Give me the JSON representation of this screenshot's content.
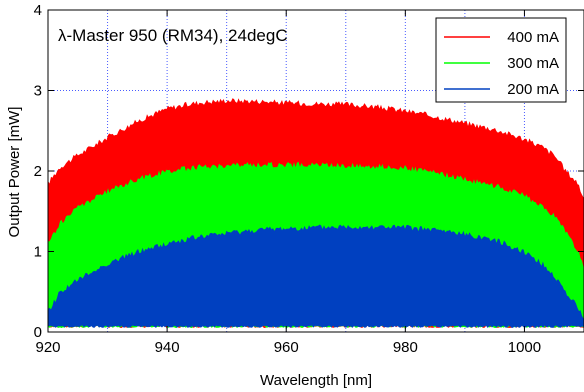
{
  "chart_data": {
    "type": "area",
    "title": "λ-Master 950 (RM34), 24degC",
    "xlabel": "Wavelength [nm]",
    "ylabel": "Output Power [mW]",
    "xlim": [
      920,
      1010
    ],
    "ylim": [
      0,
      4
    ],
    "x_ticks": [
      920,
      940,
      960,
      980,
      1000
    ],
    "x_tick_labels": [
      "920",
      "940",
      "960",
      "980",
      "1000"
    ],
    "y_ticks": [
      0,
      1,
      2,
      3,
      4
    ],
    "y_tick_labels": [
      "0",
      "1",
      "2",
      "3",
      "4"
    ],
    "grid": "dotted, blue, every 10 nm and every 1 mW",
    "legend_position": "top-right",
    "band_floor_mW": 0.05,
    "series": [
      {
        "name": "400 mA",
        "color": "#ff0000",
        "x": [
          920,
          922,
          925,
          930,
          935,
          940,
          945,
          950,
          955,
          960,
          965,
          970,
          975,
          980,
          985,
          990,
          995,
          1000,
          1003,
          1005,
          1007,
          1009,
          1010
        ],
        "y": [
          1.85,
          2.05,
          2.2,
          2.42,
          2.62,
          2.78,
          2.85,
          2.88,
          2.87,
          2.85,
          2.84,
          2.83,
          2.8,
          2.75,
          2.68,
          2.6,
          2.52,
          2.4,
          2.3,
          2.2,
          2.0,
          1.85,
          1.65
        ]
      },
      {
        "name": "300 mA",
        "color": "#00ff00",
        "x": [
          920,
          922,
          925,
          930,
          935,
          940,
          945,
          950,
          955,
          960,
          965,
          970,
          975,
          980,
          985,
          990,
          995,
          1000,
          1003,
          1005,
          1007,
          1009,
          1010
        ],
        "y": [
          1.1,
          1.35,
          1.55,
          1.75,
          1.9,
          2.0,
          2.05,
          2.07,
          2.08,
          2.08,
          2.08,
          2.07,
          2.06,
          2.04,
          1.98,
          1.9,
          1.82,
          1.7,
          1.55,
          1.45,
          1.25,
          1.0,
          0.8
        ]
      },
      {
        "name": "200 mA",
        "color": "#0040c0",
        "x": [
          920,
          922,
          925,
          930,
          935,
          940,
          945,
          950,
          955,
          960,
          965,
          970,
          975,
          980,
          985,
          990,
          995,
          1000,
          1003,
          1005,
          1007,
          1009,
          1010
        ],
        "y": [
          0.25,
          0.5,
          0.65,
          0.85,
          1.0,
          1.1,
          1.18,
          1.23,
          1.27,
          1.29,
          1.3,
          1.31,
          1.31,
          1.3,
          1.27,
          1.22,
          1.15,
          1.0,
          0.85,
          0.7,
          0.5,
          0.3,
          0.18
        ]
      }
    ]
  }
}
